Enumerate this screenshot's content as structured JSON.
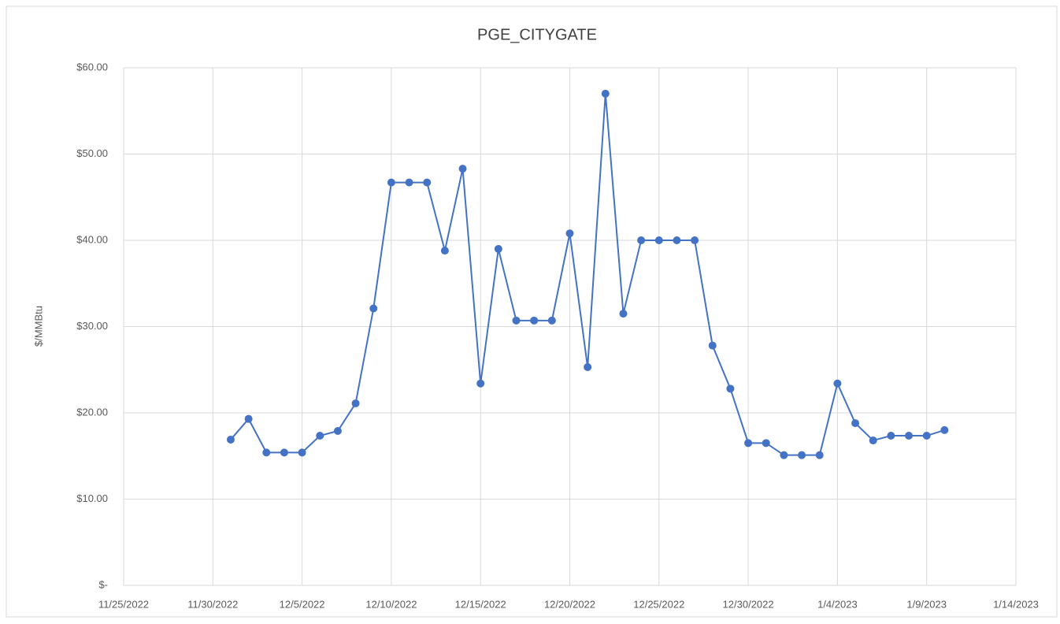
{
  "chart_data": {
    "type": "line",
    "title": "PGE_CITYGATE",
    "y_label": "$/MMBtu",
    "x": [
      "12/1/2022",
      "12/2/2022",
      "12/3/2022",
      "12/4/2022",
      "12/5/2022",
      "12/6/2022",
      "12/7/2022",
      "12/8/2022",
      "12/9/2022",
      "12/10/2022",
      "12/11/2022",
      "12/12/2022",
      "12/13/2022",
      "12/14/2022",
      "12/15/2022",
      "12/16/2022",
      "12/17/2022",
      "12/18/2022",
      "12/19/2022",
      "12/20/2022",
      "12/21/2022",
      "12/22/2022",
      "12/23/2022",
      "12/24/2022",
      "12/25/2022",
      "12/26/2022",
      "12/27/2022",
      "12/28/2022",
      "12/29/2022",
      "12/30/2022",
      "12/31/2022",
      "1/1/2023",
      "1/2/2023",
      "1/3/2023",
      "1/4/2023",
      "1/5/2023",
      "1/6/2023",
      "1/7/2023",
      "1/8/2023",
      "1/9/2023",
      "1/10/2023"
    ],
    "series": [
      {
        "color": "#4472c4",
        "values": [
          16.9,
          19.3,
          15.4,
          15.4,
          15.4,
          17.35,
          17.9,
          21.1,
          32.1,
          46.7,
          46.7,
          46.7,
          38.8,
          48.3,
          23.4,
          39.0,
          30.7,
          30.7,
          30.7,
          40.8,
          25.3,
          57.0,
          31.5,
          40.0,
          40.0,
          40.0,
          40.0,
          27.8,
          22.8,
          16.5,
          16.5,
          15.1,
          15.1,
          15.1,
          23.4,
          18.8,
          16.8,
          17.35,
          17.35,
          17.35,
          18.0
        ]
      }
    ],
    "xlim": [
      "11/25/2022",
      "1/14/2023"
    ],
    "xticks": [
      "11/25/2022",
      "11/30/2022",
      "12/5/2022",
      "12/10/2022",
      "12/15/2022",
      "12/20/2022",
      "12/25/2022",
      "12/30/2022",
      "1/4/2023",
      "1/9/2023",
      "1/14/2023"
    ],
    "ylim": [
      0,
      60
    ],
    "yticks": [
      {
        "value": 0,
        "label": "$-"
      },
      {
        "value": 10,
        "label": "$10.00"
      },
      {
        "value": 20,
        "label": "$20.00"
      },
      {
        "value": 30,
        "label": "$30.00"
      },
      {
        "value": 40,
        "label": "$40.00"
      },
      {
        "value": 50,
        "label": "$50.00"
      },
      {
        "value": 60,
        "label": "$60.00"
      }
    ],
    "grid": true
  }
}
